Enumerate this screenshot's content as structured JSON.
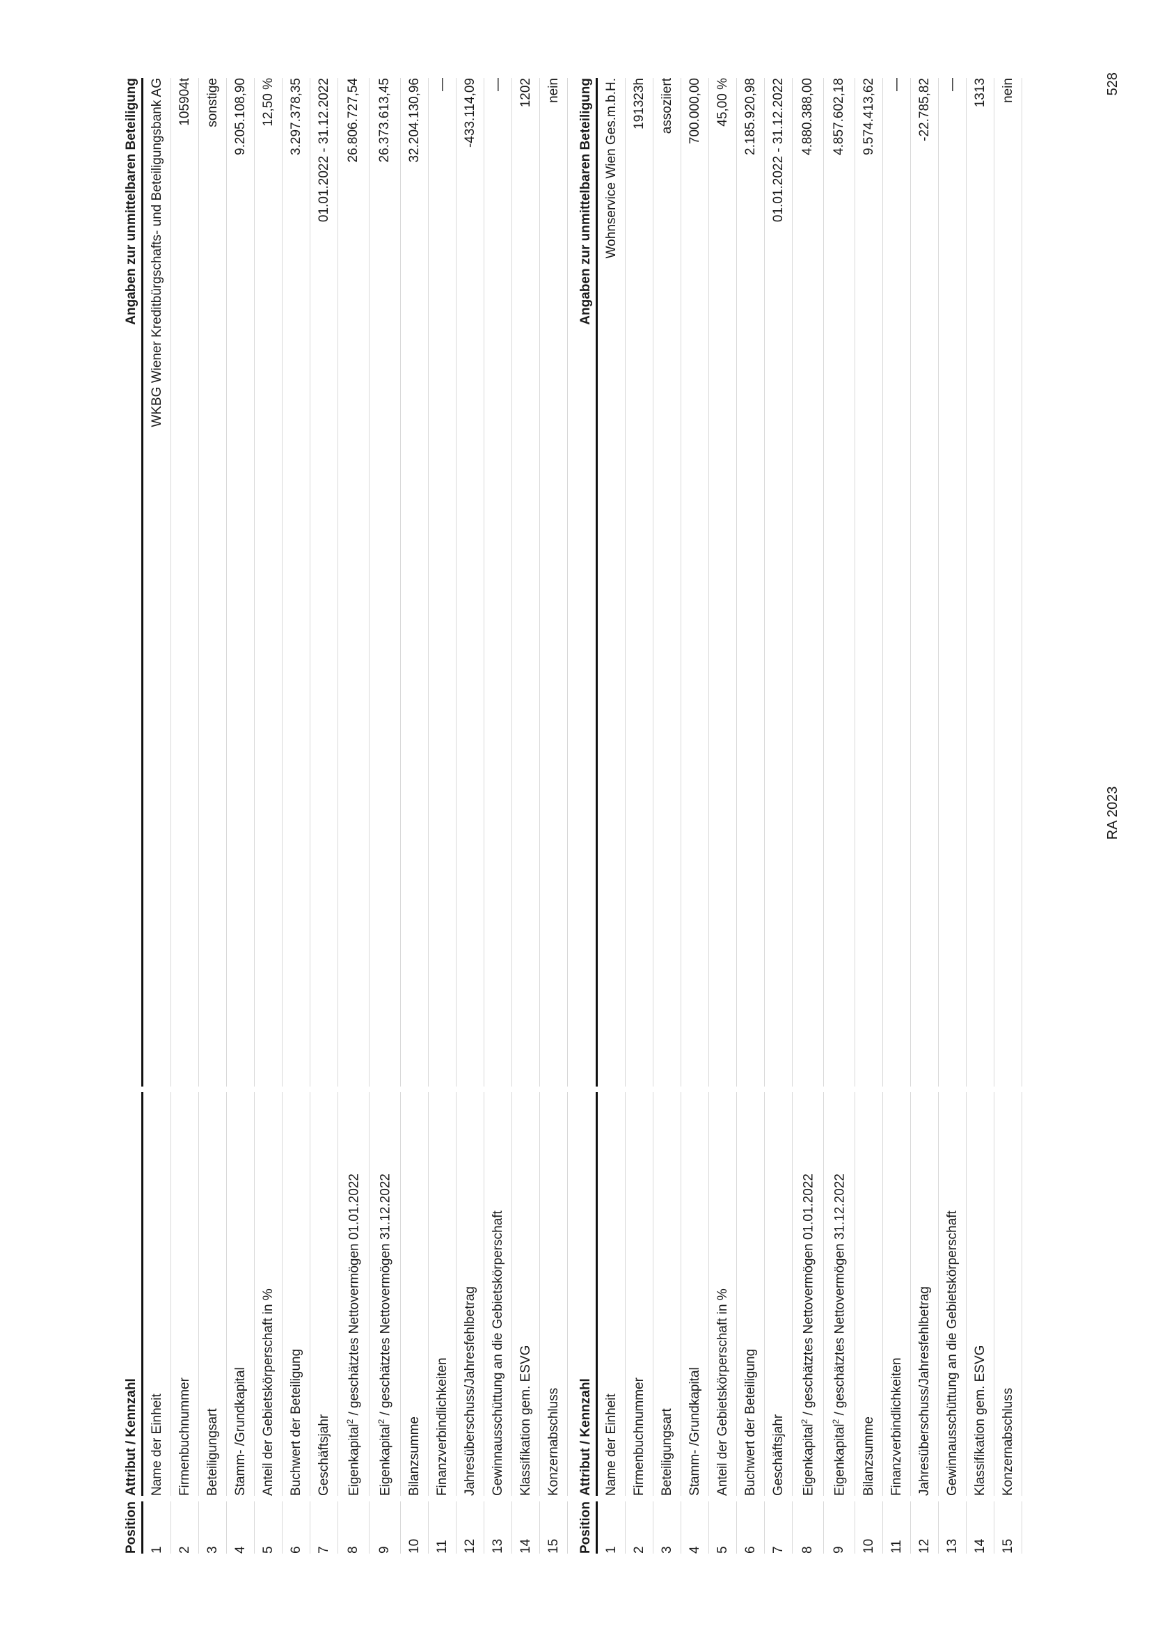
{
  "headers": {
    "position": "Position",
    "attribute": "Attribut / Kennzahl",
    "value": "Angaben zur unmittelbaren Beteiligung"
  },
  "rows": [
    {
      "pos": "1",
      "label": "Name der Einheit",
      "sup": "",
      "label_rest": ""
    },
    {
      "pos": "2",
      "label": "Firmenbuchnummer",
      "sup": "",
      "label_rest": ""
    },
    {
      "pos": "3",
      "label": "Beteiligungsart",
      "sup": "",
      "label_rest": ""
    },
    {
      "pos": "4",
      "label": "Stamm- /Grundkapital",
      "sup": "",
      "label_rest": ""
    },
    {
      "pos": "5",
      "label": "Anteil der Gebietskörperschaft in %",
      "sup": "",
      "label_rest": ""
    },
    {
      "pos": "6",
      "label": "Buchwert der Beteiligung",
      "sup": "",
      "label_rest": ""
    },
    {
      "pos": "7",
      "label": "Geschäftsjahr",
      "sup": "",
      "label_rest": ""
    },
    {
      "pos": "8",
      "label": "Eigenkapital",
      "sup": "2",
      "label_rest": " / geschätztes Nettovermögen 01.01.2022"
    },
    {
      "pos": "9",
      "label": "Eigenkapital",
      "sup": "2",
      "label_rest": " / geschätztes Nettovermögen 31.12.2022"
    },
    {
      "pos": "10",
      "label": "Bilanzsumme",
      "sup": "",
      "label_rest": ""
    },
    {
      "pos": "11",
      "label": "Finanzverbindlichkeiten",
      "sup": "",
      "label_rest": ""
    },
    {
      "pos": "12",
      "label": "Jahresüberschuss/Jahresfehlbetrag",
      "sup": "",
      "label_rest": ""
    },
    {
      "pos": "13",
      "label": "Gewinnausschüttung an die Gebietskörperschaft",
      "sup": "",
      "label_rest": ""
    },
    {
      "pos": "14",
      "label": "Klassifikation gem. ESVG",
      "sup": "",
      "label_rest": ""
    },
    {
      "pos": "15",
      "label": "Konzernabschluss",
      "sup": "",
      "label_rest": ""
    }
  ],
  "tables": [
    {
      "values": [
        "WKBG Wiener Kreditbürgschafts- und Beteiligungsbank AG",
        "105904t",
        "sonstige",
        "9.205.108,90",
        "12,50 %",
        "3.297.378,35",
        "01.01.2022 - 31.12.2022",
        "26.806.727,54",
        "26.373.613,45",
        "32.204.130,96",
        "—",
        "-433.114,09",
        "—",
        "1202",
        "nein"
      ]
    },
    {
      "values": [
        "Wohnservice Wien Ges.m.b.H.",
        "191323h",
        "assoziiert",
        "700.000,00",
        "45,00 %",
        "2.185.920,98",
        "01.01.2022 - 31.12.2022",
        "4.880.388,00",
        "4.857.602,18",
        "9.574.413,62",
        "—",
        "-22.785,82",
        "—",
        "1313",
        "nein"
      ]
    }
  ],
  "footer": {
    "report": "RA 2023",
    "page_number": "528"
  }
}
